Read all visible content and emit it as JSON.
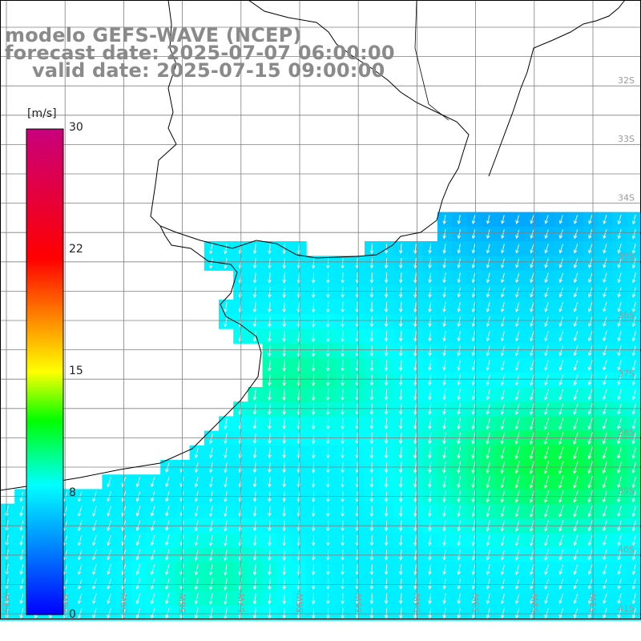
{
  "titles": {
    "line1": "modelo GEFS-WAVE (NCEP)",
    "line2": "forecast date: 2025-07-07 06:00:00",
    "line3": "valid date: 2025-07-15 09:00:00"
  },
  "colorbar": {
    "unit": "[m/s]",
    "ticks": [
      {
        "label": "30",
        "value": 30
      },
      {
        "label": "22",
        "value": 22
      },
      {
        "label": "15",
        "value": 15
      },
      {
        "label": "8",
        "value": 8
      },
      {
        "label": "0",
        "value": 0
      }
    ],
    "min": 0,
    "max": 30,
    "stops": [
      {
        "v": 0,
        "c": "#0000ff"
      },
      {
        "v": 8,
        "c": "#00ffff"
      },
      {
        "v": 12,
        "c": "#00ff00"
      },
      {
        "v": 15,
        "c": "#ffff00"
      },
      {
        "v": 22,
        "c": "#ff0000"
      },
      {
        "v": 30,
        "c": "#c8007c"
      }
    ]
  },
  "lat_labels": [
    "32S",
    "33S",
    "34S",
    "35S",
    "36S",
    "37S",
    "38S",
    "39S",
    "40S",
    "41S"
  ],
  "lon_labels": [
    "61W",
    "60W",
    "59W",
    "58W",
    "57W",
    "56W",
    "55W",
    "54W",
    "53W",
    "52W",
    "51W"
  ],
  "colors": {
    "grid": "#7f7f7f",
    "coast": "#000000",
    "arrow": "#ffffff",
    "title": "#8a8a8a"
  }
}
